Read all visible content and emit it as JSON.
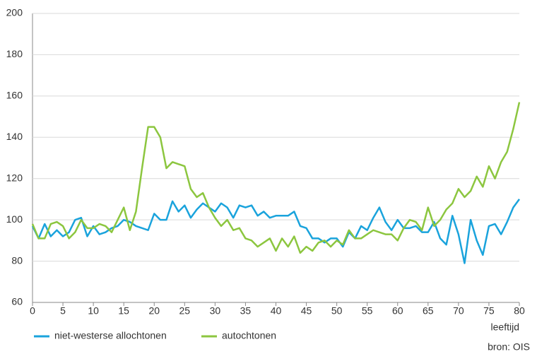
{
  "chart_data": {
    "type": "line",
    "x": [
      0,
      1,
      2,
      3,
      4,
      5,
      6,
      7,
      8,
      9,
      10,
      11,
      12,
      13,
      14,
      15,
      16,
      17,
      18,
      19,
      20,
      21,
      22,
      23,
      24,
      25,
      26,
      27,
      28,
      29,
      30,
      31,
      32,
      33,
      34,
      35,
      36,
      37,
      38,
      39,
      40,
      41,
      42,
      43,
      44,
      45,
      46,
      47,
      48,
      49,
      50,
      51,
      52,
      53,
      54,
      55,
      56,
      57,
      58,
      59,
      60,
      61,
      62,
      63,
      64,
      65,
      66,
      67,
      68,
      69,
      70,
      71,
      72,
      73,
      74,
      75,
      76,
      77,
      78,
      79,
      80
    ],
    "series": [
      {
        "name": "niet-westerse allochtonen",
        "color": "#1aa3dc",
        "values": [
          97,
          91,
          98,
          92,
          95,
          92,
          94,
          100,
          101,
          92,
          97,
          93,
          94,
          96,
          97,
          100,
          99,
          97,
          96,
          95,
          103,
          100,
          100,
          109,
          104,
          107,
          101,
          105,
          108,
          106,
          104,
          108,
          106,
          101,
          107,
          106,
          107,
          102,
          104,
          101,
          102,
          102,
          102,
          104,
          97,
          96,
          91,
          91,
          89,
          91,
          91,
          87,
          94,
          91,
          97,
          95,
          101,
          106,
          99,
          95,
          100,
          96,
          96,
          97,
          94,
          94,
          99,
          91,
          88,
          102,
          93,
          79,
          100,
          90,
          83,
          97,
          98,
          93,
          99,
          106,
          110
        ]
      },
      {
        "name": "autochtonen",
        "color": "#8cc63f",
        "values": [
          98,
          91,
          91,
          98,
          99,
          97,
          91,
          94,
          100,
          96,
          96,
          98,
          97,
          94,
          100,
          106,
          95,
          104,
          125,
          145,
          145,
          140,
          125,
          128,
          127,
          126,
          115,
          111,
          113,
          106,
          101,
          97,
          100,
          95,
          96,
          91,
          90,
          87,
          89,
          91,
          85,
          91,
          87,
          92,
          84,
          87,
          85,
          89,
          90,
          87,
          90,
          88,
          95,
          91,
          91,
          93,
          95,
          94,
          93,
          93,
          90,
          96,
          100,
          99,
          95,
          106,
          97,
          100,
          105,
          108,
          115,
          111,
          114,
          121,
          116,
          126,
          120,
          128,
          133,
          144,
          157
        ]
      }
    ],
    "xlim": [
      0,
      80
    ],
    "xticks": [
      0,
      5,
      10,
      15,
      20,
      25,
      30,
      35,
      40,
      45,
      50,
      55,
      60,
      65,
      70,
      75,
      80
    ],
    "ylim": [
      60,
      200
    ],
    "yticks": [
      60,
      80,
      100,
      120,
      140,
      160,
      180,
      200
    ],
    "x_label": "leeftijd",
    "source": "bron: OIS",
    "grid": true
  }
}
